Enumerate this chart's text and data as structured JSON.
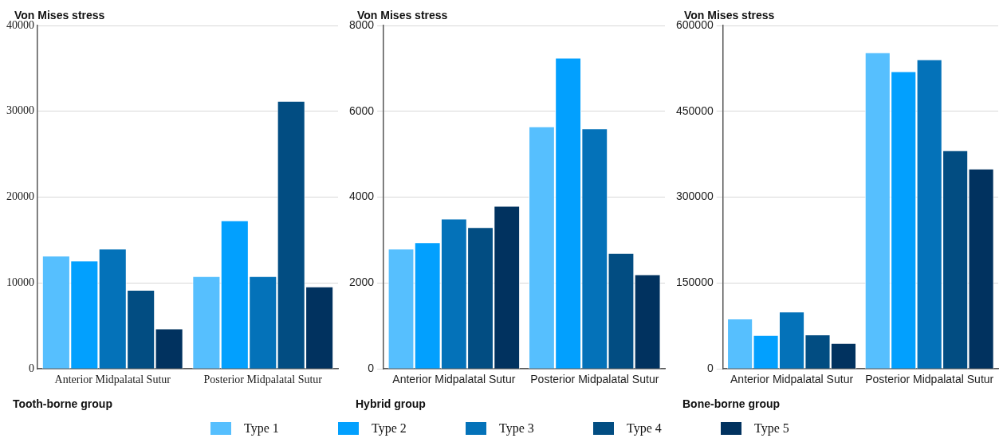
{
  "chart_data": [
    {
      "type": "bar",
      "ylabel": "Von Mises stress",
      "xlabel": "Tooth-borne group",
      "categories": [
        "Anterior Midpalatal Sutur",
        "Posterior Midpalatal Sutur"
      ],
      "ylim": [
        0,
        40000
      ],
      "yticks": [
        0,
        10000,
        20000,
        30000,
        40000
      ],
      "grid": "y",
      "legend": "bottom",
      "series": [
        {
          "name": "Type 1",
          "color": "#56bffe",
          "values": [
            13200,
            10800
          ]
        },
        {
          "name": "Type 2",
          "color": "#02a0fe",
          "values": [
            12600,
            17300
          ]
        },
        {
          "name": "Type 3",
          "color": "#0472b9",
          "values": [
            14000,
            10800
          ]
        },
        {
          "name": "Type 4",
          "color": "#024d82",
          "values": [
            9200,
            31200
          ]
        },
        {
          "name": "Type 5",
          "color": "#01325f",
          "values": [
            4700,
            9600
          ]
        }
      ]
    },
    {
      "type": "bar",
      "ylabel": "Von Mises stress",
      "xlabel": "Hybrid group",
      "categories": [
        "Anterior Midpalatal Sutur",
        "Posterior Midpalatal Sutur"
      ],
      "ylim": [
        0,
        8000
      ],
      "yticks": [
        0,
        2000,
        4000,
        6000,
        8000
      ],
      "grid": "y",
      "series": [
        {
          "color": "#56bffe",
          "values": [
            2800,
            5650
          ]
        },
        {
          "color": "#02a0fe",
          "values": [
            2950,
            7250
          ]
        },
        {
          "color": "#0472b9",
          "values": [
            3500,
            5600
          ]
        },
        {
          "color": "#024d82",
          "values": [
            3300,
            2700
          ]
        },
        {
          "color": "#01325f",
          "values": [
            3800,
            2200
          ]
        }
      ]
    },
    {
      "type": "bar",
      "ylabel": "Von Mises stress",
      "xlabel": "Bone-borne group",
      "categories": [
        "Anterior Midpalatal Sutur",
        "Posterior Midpalatal Sutur"
      ],
      "ylim": [
        0,
        600000
      ],
      "yticks": [
        0,
        150000,
        300000,
        450000,
        600000
      ],
      "grid": "y",
      "series": [
        {
          "color": "#56bffe",
          "values": [
            88000,
            553000
          ]
        },
        {
          "color": "#02a0fe",
          "values": [
            59000,
            520000
          ]
        },
        {
          "color": "#0472b9",
          "values": [
            100000,
            541000
          ]
        },
        {
          "color": "#024d82",
          "values": [
            60000,
            382000
          ]
        },
        {
          "color": "#01325f",
          "values": [
            45000,
            350000
          ]
        }
      ]
    }
  ]
}
